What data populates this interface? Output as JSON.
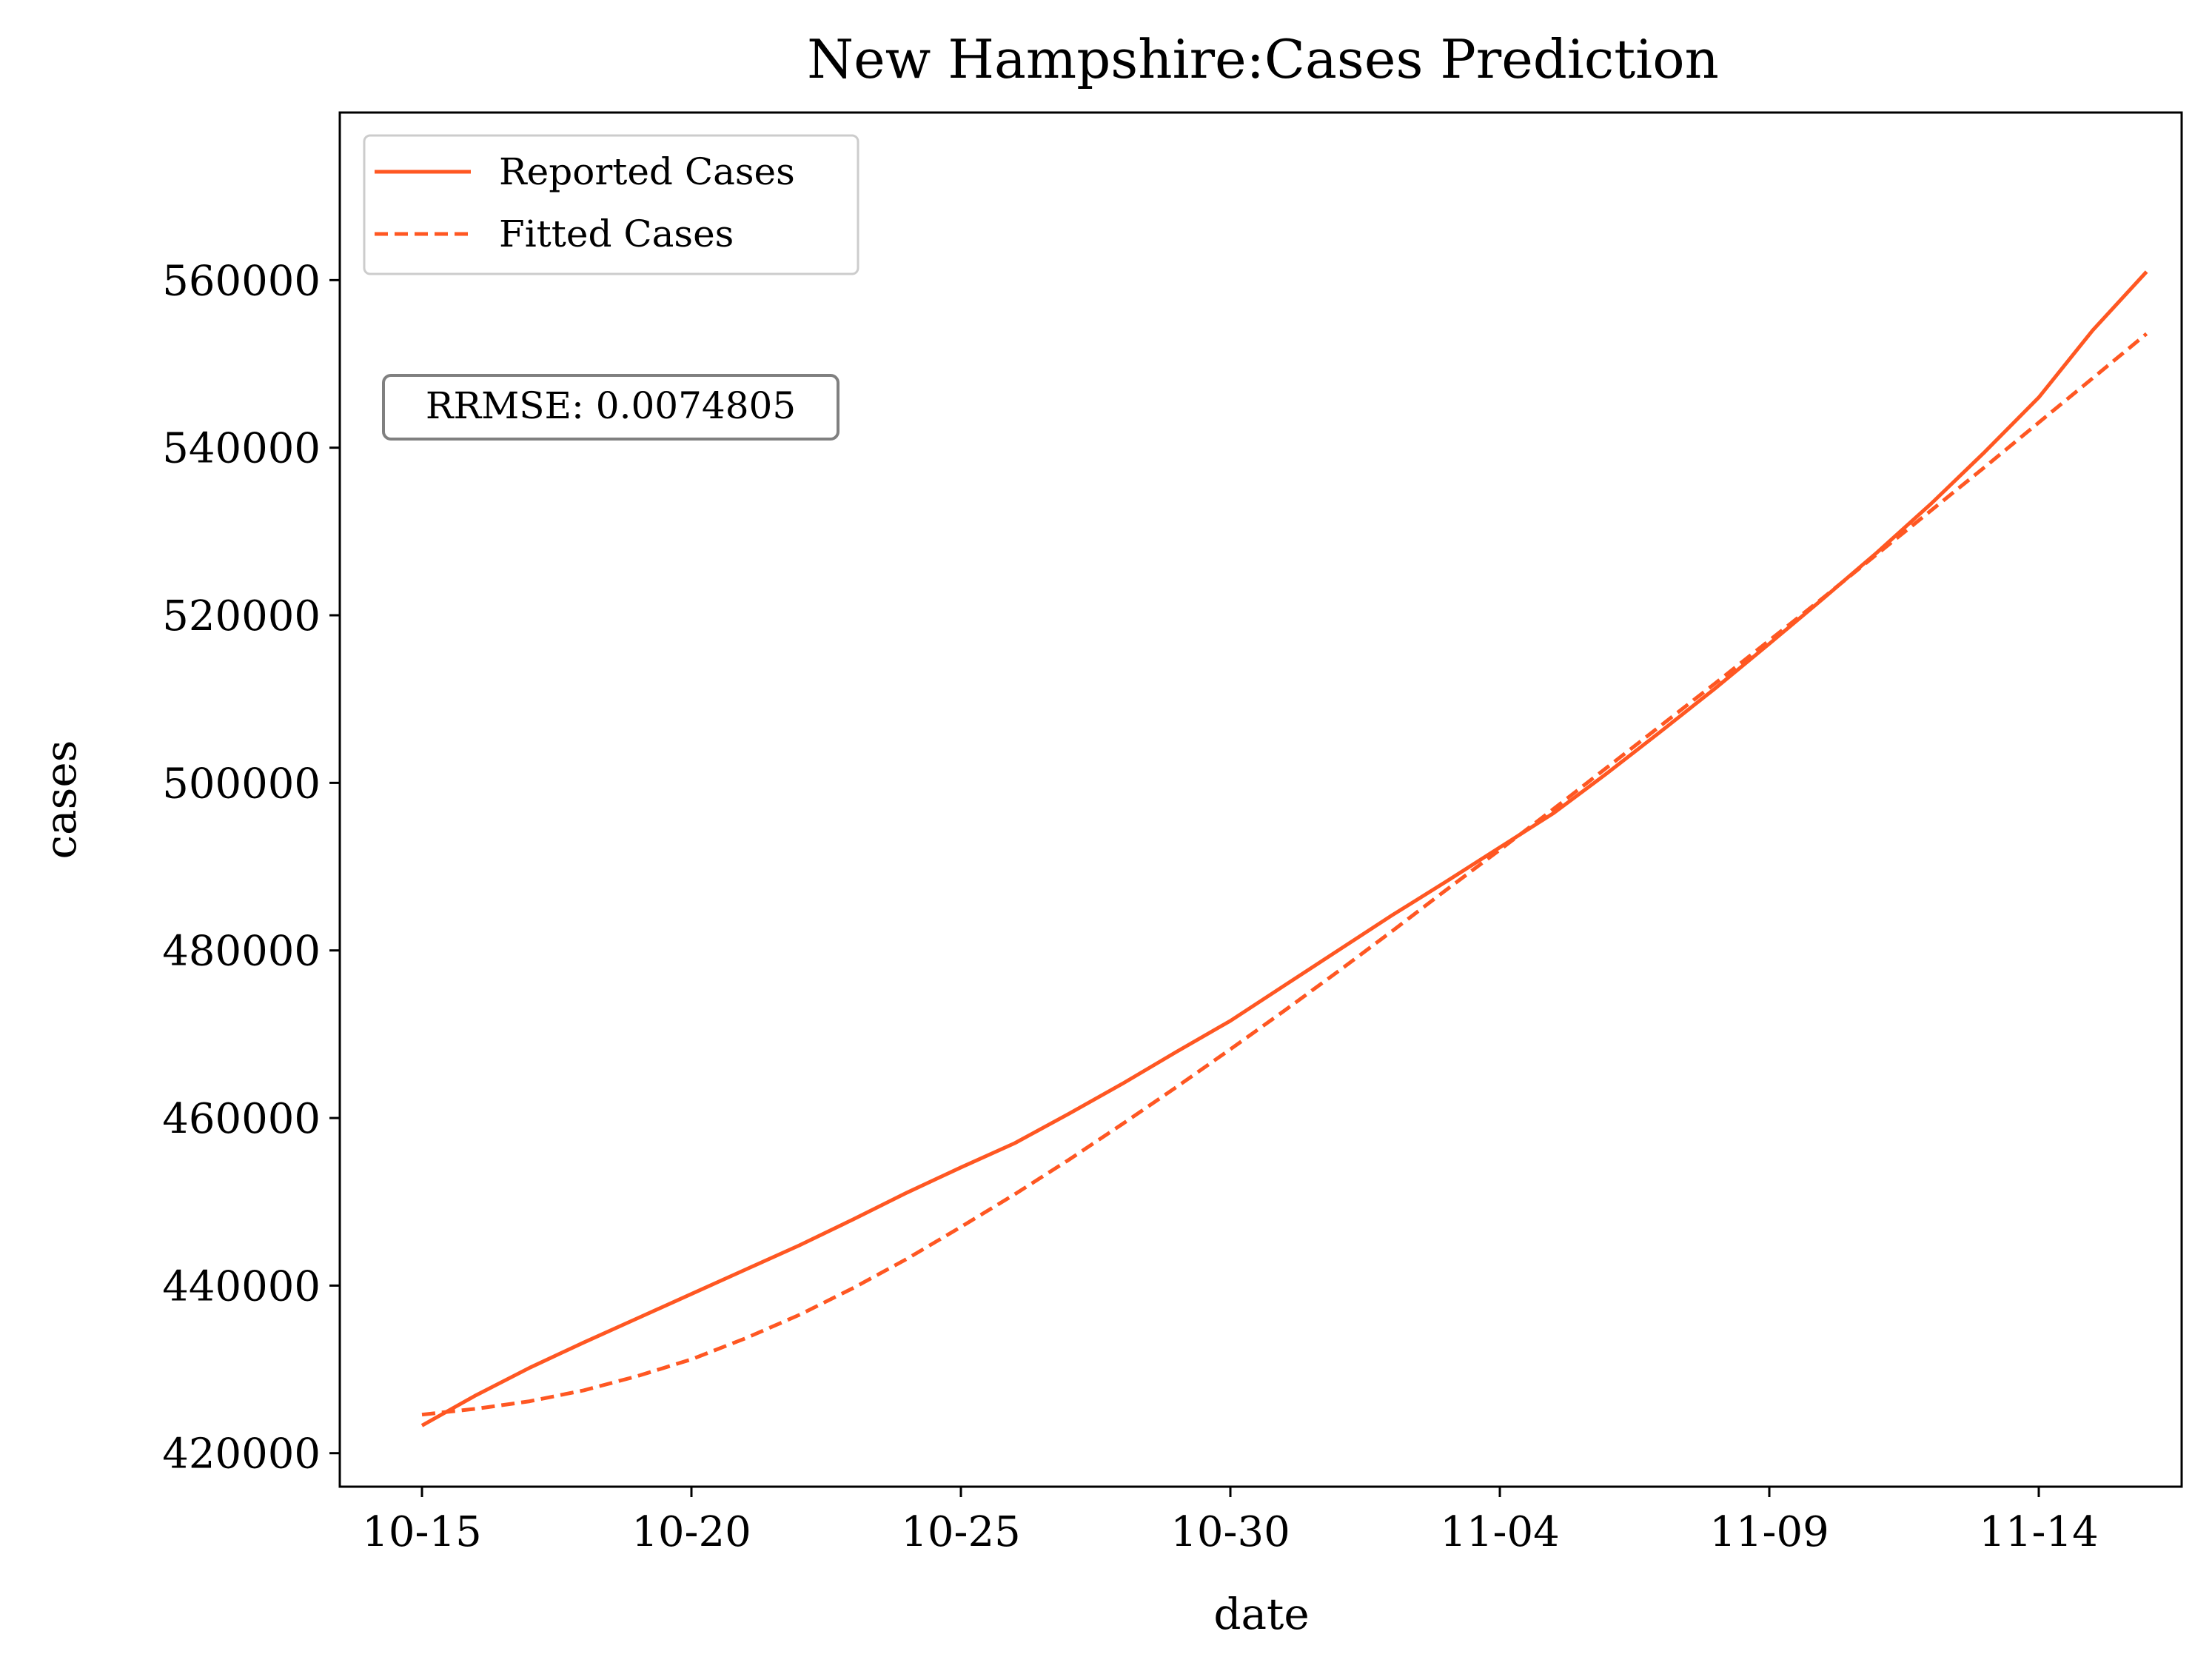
{
  "chart_data": {
    "type": "line",
    "title": "New Hampshire:Cases Prediction",
    "xlabel": "date",
    "ylabel": "cases",
    "x_ticks": [
      "10-15",
      "10-20",
      "10-25",
      "10-30",
      "11-04",
      "11-09",
      "11-14"
    ],
    "y_ticks": [
      "420000",
      "440000",
      "460000",
      "480000",
      "500000",
      "520000",
      "540000",
      "560000"
    ],
    "ylim": [
      416000,
      580000
    ],
    "x": [
      "10-15",
      "10-16",
      "10-17",
      "10-18",
      "10-19",
      "10-20",
      "10-21",
      "10-22",
      "10-23",
      "10-24",
      "10-25",
      "10-26",
      "10-27",
      "10-28",
      "10-29",
      "10-30",
      "10-31",
      "11-01",
      "11-02",
      "11-03",
      "11-04",
      "11-05",
      "11-06",
      "11-07",
      "11-08",
      "11-09",
      "11-10",
      "11-11",
      "11-12",
      "11-13",
      "11-14",
      "11-15",
      "11-16"
    ],
    "series": [
      {
        "name": "Reported Cases",
        "style": "solid",
        "color": "#ff5722",
        "values": [
          423300,
          426900,
          430200,
          433200,
          436100,
          439000,
          441900,
          444800,
          447900,
          451100,
          454100,
          457000,
          460500,
          464100,
          467900,
          471600,
          475800,
          480000,
          484200,
          488200,
          492300,
          496400,
          501200,
          506200,
          511300,
          516600,
          522000,
          527500,
          533300,
          539500,
          546000,
          554000,
          561000
        ]
      },
      {
        "name": "Fitted Cases",
        "style": "dashed",
        "color": "#ff5722",
        "values": [
          424600,
          425300,
          426200,
          427500,
          429200,
          431200,
          433700,
          436500,
          439700,
          443200,
          447000,
          450900,
          455000,
          459300,
          463700,
          468200,
          472800,
          477500,
          482300,
          487200,
          492000,
          496900,
          501900,
          506900,
          511900,
          517000,
          522100,
          527300,
          532500,
          537700,
          543000,
          548300,
          553600
        ]
      }
    ],
    "annotation": "RRMSE: 0.0074805",
    "legend": "top-left",
    "grid": false
  }
}
